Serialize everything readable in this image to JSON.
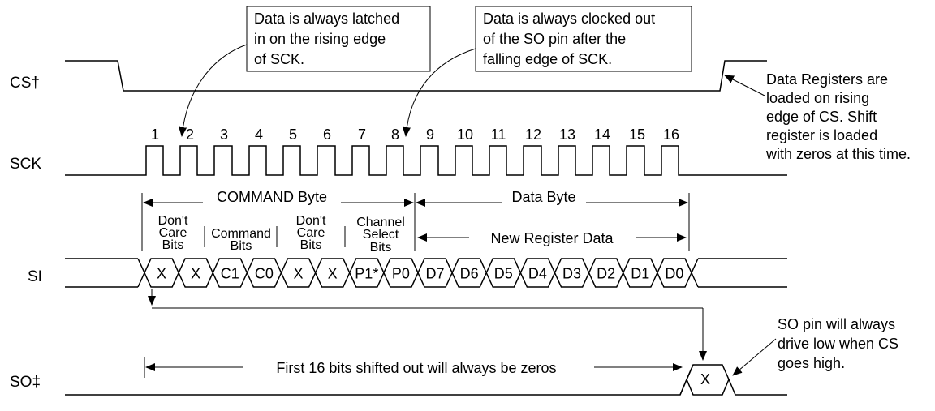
{
  "signals": {
    "cs": "CS†",
    "sck": "SCK",
    "si": "SI",
    "so": "SO‡"
  },
  "clock_numbers": [
    "1",
    "2",
    "3",
    "4",
    "5",
    "6",
    "7",
    "8",
    "9",
    "10",
    "11",
    "12",
    "13",
    "14",
    "15",
    "16"
  ],
  "callouts": {
    "latched": [
      "Data is always latched",
      "in on the rising edge",
      "of SCK."
    ],
    "clocked": [
      "Data is always clocked out",
      "of the SO pin after the",
      "falling edge of SCK."
    ],
    "data_registers": [
      "Data Registers are",
      "loaded on rising",
      "edge of CS. Shift",
      "register is loaded",
      "with zeros at this time."
    ],
    "so_pin": [
      "SO pin will always",
      "drive low when CS",
      "goes high."
    ]
  },
  "spans": {
    "command_byte": "COMMAND Byte",
    "data_byte": "Data Byte",
    "new_register_data": "New Register Data",
    "first_16_bits": "First 16 bits shifted out will always be zeros"
  },
  "groups": {
    "dont_care_1": [
      "Don't",
      "Care",
      "Bits"
    ],
    "command_bits": [
      "Command",
      "Bits"
    ],
    "dont_care_2": [
      "Don't",
      "Care",
      "Bits"
    ],
    "channel_select": [
      "Channel",
      "Select",
      "Bits"
    ]
  },
  "si_bits": [
    "X",
    "X",
    "C1",
    "C0",
    "X",
    "X",
    "P1*",
    "P0",
    "D7",
    "D6",
    "D5",
    "D4",
    "D3",
    "D2",
    "D1",
    "D0"
  ],
  "so_bit": "X"
}
